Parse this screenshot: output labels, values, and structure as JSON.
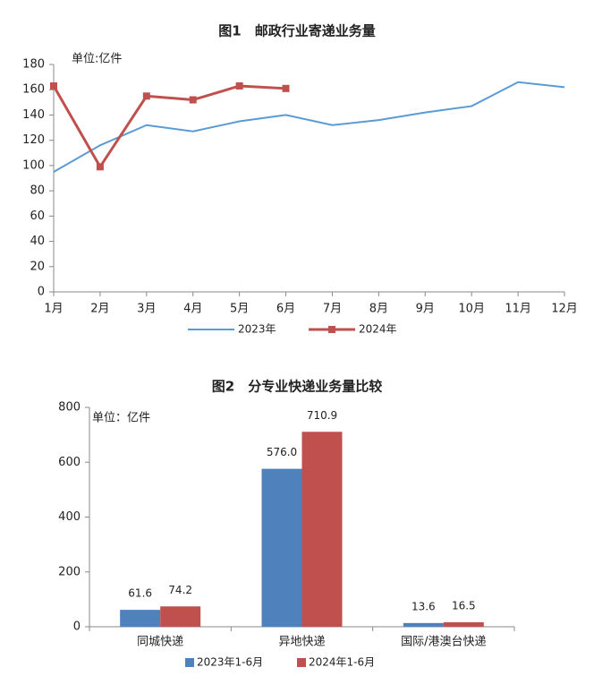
{
  "chart_data": [
    {
      "type": "line",
      "title": "图1　邮政行业寄递业务量",
      "annotation": "单位:亿件",
      "categories": [
        "1月",
        "2月",
        "3月",
        "4月",
        "5月",
        "6月",
        "7月",
        "8月",
        "9月",
        "10月",
        "11月",
        "12月"
      ],
      "series": [
        {
          "name": "2023年",
          "color": "#5b9bd5",
          "marker": "none",
          "values": [
            95,
            116,
            132,
            127,
            135,
            140,
            132,
            136,
            142,
            147,
            166,
            162
          ]
        },
        {
          "name": "2024年",
          "color": "#c0504d",
          "marker": "square",
          "values": [
            163,
            99,
            155,
            152,
            163,
            161,
            null,
            null,
            null,
            null,
            null,
            null
          ]
        }
      ],
      "ylim": [
        0,
        180
      ],
      "yticks": [
        0,
        20,
        40,
        60,
        80,
        100,
        120,
        140,
        160,
        180
      ],
      "grid": false,
      "legend": "bottom"
    },
    {
      "type": "bar",
      "title": "图2　分专业快递业务量比较",
      "annotation": "单位：亿件",
      "categories": [
        "同城快递",
        "异地快递",
        "国际/港澳台快递"
      ],
      "series": [
        {
          "name": "2023年1-6月",
          "color": "#4f81bd",
          "values": [
            61.6,
            576,
            13.6
          ],
          "value_labels": [
            "61.6",
            "576.0",
            "13.6"
          ]
        },
        {
          "name": "2024年1-6月",
          "color": "#c0504d",
          "values": [
            74.2,
            710.9,
            16.5
          ],
          "value_labels": [
            "74.2",
            "710.9",
            "16.5"
          ]
        }
      ],
      "ylim": [
        0,
        800
      ],
      "yticks": [
        0,
        200,
        400,
        600,
        800
      ],
      "grid": false,
      "legend": "bottom"
    }
  ]
}
